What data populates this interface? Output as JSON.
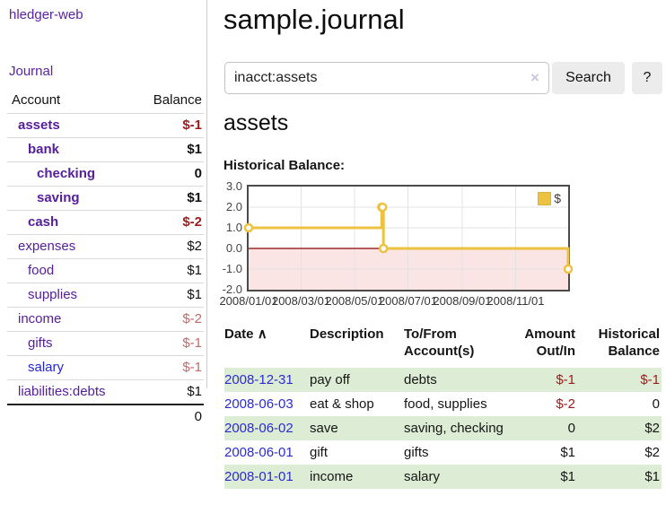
{
  "app": {
    "title": "hledger-web"
  },
  "sidebar": {
    "journal_label": "Journal",
    "accounts": {
      "headers": {
        "account": "Account",
        "balance": "Balance"
      },
      "rows": [
        {
          "name": "assets",
          "balance": "$-1",
          "indent": 1,
          "emph": true,
          "balance_style": "neg-strong",
          "link_style": "purple"
        },
        {
          "name": "bank",
          "balance": "$1",
          "indent": 2,
          "emph": true,
          "balance_style": "strong",
          "link_style": "purple"
        },
        {
          "name": "checking",
          "balance": "0",
          "indent": 3,
          "emph": true,
          "balance_style": "strong",
          "link_style": "purple"
        },
        {
          "name": "saving",
          "balance": "$1",
          "indent": 3,
          "emph": true,
          "balance_style": "strong",
          "link_style": "purple"
        },
        {
          "name": "cash",
          "balance": "$-2",
          "indent": 2,
          "emph": true,
          "balance_style": "neg-strong",
          "link_style": "purple"
        },
        {
          "name": "expenses",
          "balance": "$2",
          "indent": 1,
          "emph": false,
          "balance_style": "plain",
          "link_style": "purple"
        },
        {
          "name": "food",
          "balance": "$1",
          "indent": 2,
          "emph": false,
          "balance_style": "plain",
          "link_style": "purple"
        },
        {
          "name": "supplies",
          "balance": "$1",
          "indent": 2,
          "emph": false,
          "balance_style": "plain",
          "link_style": "purple"
        },
        {
          "name": "income",
          "balance": "$-2",
          "indent": 1,
          "emph": false,
          "balance_style": "neg",
          "link_style": "purple"
        },
        {
          "name": "gifts",
          "balance": "$-1",
          "indent": 2,
          "emph": false,
          "balance_style": "neg",
          "link_style": "purple"
        },
        {
          "name": "salary",
          "balance": "$-1",
          "indent": 2,
          "emph": false,
          "balance_style": "neg",
          "link_style": "blue"
        },
        {
          "name": "liabilities:debts",
          "balance": "$1",
          "indent": 1,
          "emph": false,
          "balance_style": "plain",
          "link_style": "purple"
        }
      ],
      "total": "0"
    }
  },
  "main": {
    "title": "sample.journal",
    "search": {
      "value": "inacct:assets",
      "clear_icon": "×",
      "search_button": "Search",
      "help_button": "?"
    },
    "account_heading": "assets",
    "chart_title": "Historical Balance:"
  },
  "chart_data": {
    "type": "line",
    "title": "Historical Balance",
    "x_range": [
      "2008-01-01",
      "2008-12-31"
    ],
    "ylim": [
      -2,
      3
    ],
    "y_ticks": [
      3,
      2,
      1,
      0,
      -1,
      -2
    ],
    "y_tick_labels": [
      "3.0",
      "2.0",
      "1.0",
      "0.0",
      "-1.0",
      "-2.0"
    ],
    "x_ticks": [
      "2008-01-01",
      "2008-03-01",
      "2008-05-01",
      "2008-07-01",
      "2008-09-01",
      "2008-11-01"
    ],
    "x_tick_labels": [
      "2008/01/01",
      "2008/03/01",
      "2008/05/01",
      "2008/07/01",
      "2008/09/01",
      "2008/11/01"
    ],
    "series": [
      {
        "name": "$",
        "color": "#edc240",
        "steps": true,
        "points": [
          [
            "2008-01-01",
            1
          ],
          [
            "2008-06-01",
            2
          ],
          [
            "2008-06-02",
            2
          ],
          [
            "2008-06-03",
            0
          ],
          [
            "2008-12-31",
            -1
          ]
        ]
      }
    ],
    "legend_position": "top-right",
    "grid": true,
    "negative_region_color": "#fbe4e4",
    "zero_line_color": "#8b0000",
    "grid_color": "#e3e3e3"
  },
  "register": {
    "headers": {
      "date": "Date",
      "description": "Description",
      "accounts": "To/From Account(s)",
      "amount": "Amount Out/In",
      "balance": "Historical Balance"
    },
    "sort_icon": "∧",
    "rows": [
      {
        "date": "2008-12-31",
        "description": "pay off",
        "accounts": "debts",
        "amount": "$-1",
        "amount_neg": true,
        "balance": "$-1",
        "balance_neg": true
      },
      {
        "date": "2008-06-03",
        "description": "eat & shop",
        "accounts": "food, supplies",
        "amount": "$-2",
        "amount_neg": true,
        "balance": "0",
        "balance_neg": false
      },
      {
        "date": "2008-06-02",
        "description": "save",
        "accounts": "saving, checking",
        "amount": "0",
        "amount_neg": false,
        "balance": "$2",
        "balance_neg": false
      },
      {
        "date": "2008-06-01",
        "description": "gift",
        "accounts": "gifts",
        "amount": "$1",
        "amount_neg": false,
        "balance": "$2",
        "balance_neg": false
      },
      {
        "date": "2008-01-01",
        "description": "income",
        "accounts": "salary",
        "amount": "$1",
        "amount_neg": false,
        "balance": "$1",
        "balance_neg": false
      }
    ]
  }
}
